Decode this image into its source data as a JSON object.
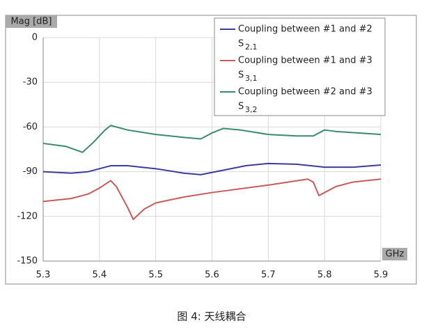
{
  "chart_data": {
    "type": "line",
    "y_label": "Mag [dB]",
    "x_label": "GHz",
    "caption": "图 4: 天线耦合",
    "xlim": [
      5.3,
      5.9
    ],
    "xticks": [
      5.3,
      5.4,
      5.5,
      5.6,
      5.7,
      5.8,
      5.9
    ],
    "ylim": [
      -150,
      0
    ],
    "yticks": [
      0,
      -30,
      -60,
      -90,
      -120,
      -150
    ],
    "grid": true,
    "legend": "top-right",
    "series": [
      {
        "name": "Coupling between #1 and #2",
        "symbol": "S",
        "subscript": "2,1",
        "color": "#3b3ba0",
        "x": [
          5.3,
          5.35,
          5.38,
          5.42,
          5.45,
          5.5,
          5.55,
          5.58,
          5.62,
          5.66,
          5.7,
          5.75,
          5.8,
          5.85,
          5.9
        ],
        "values": [
          -90,
          -91,
          -90,
          -86,
          -86,
          -88,
          -91,
          -92,
          -89,
          -86,
          -84.5,
          -85,
          -87,
          -87,
          -85.5
        ]
      },
      {
        "name": "Coupling between #1 and #3",
        "symbol": "S",
        "subscript": "3,1",
        "color": "#c85a5a",
        "x": [
          5.3,
          5.35,
          5.38,
          5.4,
          5.42,
          5.43,
          5.45,
          5.46,
          5.48,
          5.5,
          5.55,
          5.6,
          5.7,
          5.77,
          5.78,
          5.79,
          5.8,
          5.82,
          5.85,
          5.9
        ],
        "values": [
          -110,
          -108,
          -105,
          -101,
          -96,
          -100,
          -114,
          -122,
          -115,
          -111,
          -107,
          -104,
          -99,
          -95,
          -97,
          -106,
          -104,
          -100,
          -97,
          -95
        ]
      },
      {
        "name": "Coupling between #2 and #3",
        "symbol": "S",
        "subscript": "3,2",
        "color": "#3a8a6c",
        "x": [
          5.3,
          5.34,
          5.37,
          5.39,
          5.41,
          5.42,
          5.45,
          5.5,
          5.55,
          5.58,
          5.6,
          5.62,
          5.65,
          5.7,
          5.75,
          5.78,
          5.8,
          5.82,
          5.9
        ],
        "values": [
          -71,
          -73,
          -77,
          -70,
          -62,
          -59,
          -62,
          -65,
          -67,
          -68,
          -64,
          -61,
          -62,
          -65,
          -66,
          -66,
          -62,
          -63,
          -65
        ]
      }
    ]
  }
}
